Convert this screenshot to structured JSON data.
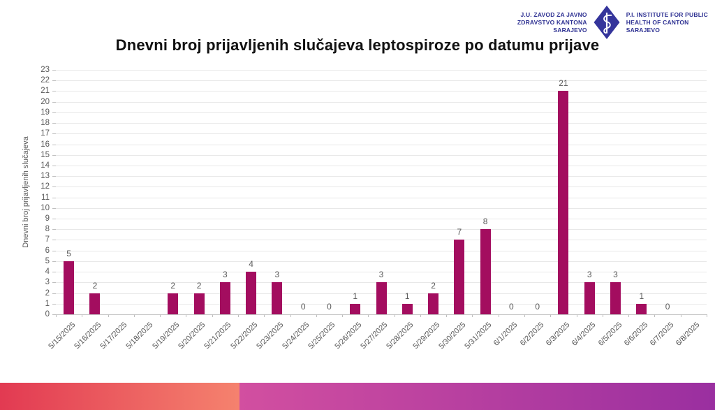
{
  "logo": {
    "left_lines": [
      "J.U. ZAVOD ZA JAVNO",
      "ZDRAVSTVO KANTONA",
      "SARAJEVO"
    ],
    "right_lines": [
      "P.I. INSTITUTE FOR PUBLIC",
      "HEALTH OF CANTON",
      "SARAJEVO"
    ],
    "color": "#2e3192"
  },
  "title": "Dnevni broj prijavljenih slučajeva leptospiroze po datumu prijave",
  "chart_data": {
    "type": "bar",
    "title": "Dnevni broj prijavljenih slučajeva leptospiroze po datumu prijave",
    "categories": [
      "5/15/2025",
      "5/16/2025",
      "5/17/2025",
      "5/18/2025",
      "5/19/2025",
      "5/20/2025",
      "5/21/2025",
      "5/22/2025",
      "5/23/2025",
      "5/24/2025",
      "5/25/2025",
      "5/26/2025",
      "5/27/2025",
      "5/28/2025",
      "5/29/2025",
      "5/30/2025",
      "5/31/2025",
      "6/1/2025",
      "6/2/2025",
      "6/3/2025",
      "6/4/2025",
      "6/5/2025",
      "6/6/2025",
      "6/7/2025",
      "6/8/2025"
    ],
    "values": [
      5,
      2,
      null,
      null,
      2,
      2,
      3,
      4,
      3,
      0,
      0,
      1,
      3,
      1,
      2,
      7,
      8,
      0,
      0,
      21,
      3,
      3,
      1,
      0,
      null
    ],
    "xlabel": "",
    "ylabel": "Dnevni broj prijavljenih slučajeva",
    "ylim": [
      0,
      23
    ],
    "y_tick_step": 1,
    "grid": true,
    "data_labels": true,
    "legend": "none",
    "bar_color": "#a30d5f",
    "tick_label_color": "#595959"
  },
  "footer_band": {
    "left_gradient": [
      "#e23a52",
      "#f5826e"
    ],
    "right_gradient": [
      "#d24fa0",
      "#9a2fa0"
    ]
  }
}
